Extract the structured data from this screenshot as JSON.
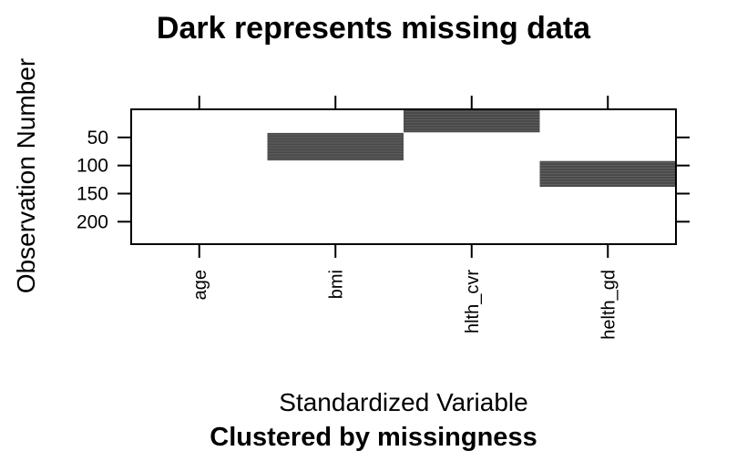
{
  "chart_data": {
    "type": "heatmap",
    "title": "Dark represents missing data",
    "xlabel": "Standardized Variable",
    "ylabel": "Observation Number",
    "subtitle": "Clustered by missingness",
    "categories": [
      "age",
      "bmi",
      "hlth_cvr",
      "helth_gd"
    ],
    "y_ticks": [
      50,
      100,
      150,
      200
    ],
    "ylim": [
      0,
      240
    ],
    "y_reversed": true,
    "grid": false,
    "missing_color": "#4a4a4a",
    "missing_ranges": [
      {
        "variable": "age",
        "ranges": []
      },
      {
        "variable": "bmi",
        "ranges": [
          [
            42,
            91
          ]
        ]
      },
      {
        "variable": "hlth_cvr",
        "ranges": [
          [
            1,
            41
          ]
        ]
      },
      {
        "variable": "helth_gd",
        "ranges": [
          [
            92,
            138
          ]
        ]
      }
    ]
  }
}
